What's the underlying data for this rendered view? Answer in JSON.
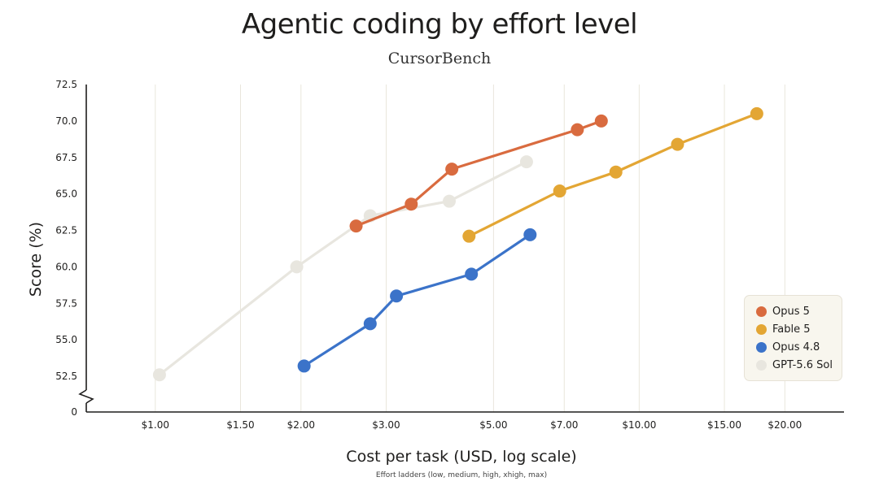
{
  "header": {
    "title": "Agentic coding by effort level",
    "subtitle": "CursorBench"
  },
  "chart_data": {
    "type": "line",
    "x_scale": "log",
    "xlabel": "Cost per task (USD, log scale)",
    "ylabel": "Score (%)",
    "footnote": "Effort ladders (low, medium, high, xhigh, max)",
    "xlim": [
      0.72,
      26.5
    ],
    "ylim": [
      52.5,
      72.5
    ],
    "y_axis_break": true,
    "y_zero_label": "0",
    "x_ticks": [
      {
        "value": 1.0,
        "label": "$1.00"
      },
      {
        "value": 1.5,
        "label": "$1.50"
      },
      {
        "value": 2.0,
        "label": "$2.00"
      },
      {
        "value": 3.0,
        "label": "$3.00"
      },
      {
        "value": 5.0,
        "label": "$5.00"
      },
      {
        "value": 7.0,
        "label": "$7.00"
      },
      {
        "value": 10.0,
        "label": "$10.00"
      },
      {
        "value": 15.0,
        "label": "$15.00"
      },
      {
        "value": 20.0,
        "label": "$20.00"
      }
    ],
    "y_ticks": [
      {
        "value": 52.5,
        "label": "52.5"
      },
      {
        "value": 55.0,
        "label": "55.0"
      },
      {
        "value": 57.5,
        "label": "57.5"
      },
      {
        "value": 60.0,
        "label": "60.0"
      },
      {
        "value": 62.5,
        "label": "62.5"
      },
      {
        "value": 65.0,
        "label": "65.0"
      },
      {
        "value": 67.5,
        "label": "67.5"
      },
      {
        "value": 70.0,
        "label": "70.0"
      },
      {
        "value": 72.5,
        "label": "72.5"
      }
    ],
    "grid": "vertical",
    "legend_position": "bottom-right",
    "series": [
      {
        "name": "GPT-5.6 Sol",
        "color": "#e8e6df",
        "points": [
          [
            1.02,
            52.6
          ],
          [
            1.96,
            60.0
          ],
          [
            2.78,
            63.5
          ],
          [
            4.05,
            64.5
          ],
          [
            5.85,
            67.2
          ]
        ]
      },
      {
        "name": "Opus 4.8",
        "color": "#3b73c9",
        "points": [
          [
            2.03,
            53.2
          ],
          [
            2.78,
            56.1
          ],
          [
            3.15,
            58.0
          ],
          [
            4.5,
            59.5
          ],
          [
            5.95,
            62.2
          ]
        ]
      },
      {
        "name": "Fable 5",
        "color": "#e3a634",
        "points": [
          [
            4.45,
            62.1
          ],
          [
            6.85,
            65.2
          ],
          [
            8.95,
            66.5
          ],
          [
            12.0,
            68.4
          ],
          [
            17.5,
            70.5
          ]
        ]
      },
      {
        "name": "Opus 5",
        "color": "#d96b3f",
        "points": [
          [
            2.6,
            62.8
          ],
          [
            3.38,
            64.3
          ],
          [
            4.1,
            66.7
          ],
          [
            7.45,
            69.4
          ],
          [
            8.35,
            70.0
          ]
        ]
      }
    ],
    "legend_order": [
      "Opus 5",
      "Fable 5",
      "Opus 4.8",
      "GPT-5.6 Sol"
    ]
  }
}
